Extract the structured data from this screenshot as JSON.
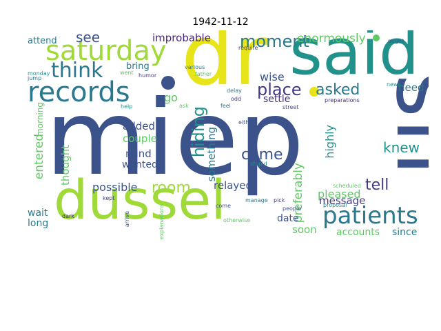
{
  "title": "1942-11-12",
  "words": [
    {
      "text": "miep",
      "color": "#3b528b"
    },
    {
      "text": "us",
      "color": "#3b528b"
    },
    {
      "text": "dr",
      "color": "#e7e419"
    },
    {
      "text": "said",
      "color": "#21918c"
    },
    {
      "text": "dussel",
      "color": "#a0da39"
    },
    {
      "text": "saturday",
      "color": "#a0da39"
    },
    {
      "text": "records",
      "color": "#2a788e"
    },
    {
      "text": "patients",
      "color": "#2a788e"
    },
    {
      "text": "think",
      "color": "#2a788e"
    },
    {
      "text": "see",
      "color": "#3b528b"
    },
    {
      "text": "moment",
      "color": "#2a788e"
    },
    {
      "text": "place",
      "color": "#443983"
    },
    {
      "text": "asked",
      "color": "#2a788e"
    },
    {
      "text": "enormously",
      "color": "#5ec962"
    },
    {
      "text": "improbable",
      "color": "#482475"
    },
    {
      "text": "bring",
      "color": "#2a788e"
    },
    {
      "text": "go",
      "color": "#5ec962"
    },
    {
      "text": "wise",
      "color": "#3b528b"
    },
    {
      "text": "settle",
      "color": "#472f7d"
    },
    {
      "text": "need",
      "color": "#2a788e"
    },
    {
      "text": "knew",
      "color": "#21918c"
    },
    {
      "text": "tell",
      "color": "#443983"
    },
    {
      "text": "came",
      "color": "#3b528b"
    },
    {
      "text": "hiding",
      "color": "#21918c"
    },
    {
      "text": "room",
      "color": "#a0da39"
    },
    {
      "text": "added",
      "color": "#3b528b"
    },
    {
      "text": "couple",
      "color": "#5ec962"
    },
    {
      "text": "mind",
      "color": "#3b528b"
    },
    {
      "text": "wanted",
      "color": "#3b528b"
    },
    {
      "text": "possible",
      "color": "#3b528b"
    },
    {
      "text": "something",
      "color": "#2a788e"
    },
    {
      "text": "relayed",
      "color": "#3b528b"
    },
    {
      "text": "preferably",
      "color": "#5ec962"
    },
    {
      "text": "highly",
      "color": "#21918c"
    },
    {
      "text": "pleased",
      "color": "#5ec962"
    },
    {
      "text": "message",
      "color": "#443983"
    },
    {
      "text": "date",
      "color": "#3b528b"
    },
    {
      "text": "soon",
      "color": "#5ec962"
    },
    {
      "text": "accounts",
      "color": "#5ec962"
    },
    {
      "text": "since",
      "color": "#2a788e"
    },
    {
      "text": "entered",
      "color": "#5ec962"
    },
    {
      "text": "thought",
      "color": "#5ec962"
    },
    {
      "text": "wait",
      "color": "#2a788e"
    },
    {
      "text": "long",
      "color": "#2a788e"
    },
    {
      "text": "attend",
      "color": "#2a788e"
    },
    {
      "text": "morning",
      "color": "#5ec962"
    },
    {
      "text": "monday",
      "color": "#21918c"
    },
    {
      "text": "jump",
      "color": "#2a788e"
    },
    {
      "text": "various",
      "color": "#2a788e"
    },
    {
      "text": "require",
      "color": "#443983"
    },
    {
      "text": "ought",
      "color": "#3b528b"
    },
    {
      "text": "went",
      "color": "#5ec962"
    },
    {
      "text": "humor",
      "color": "#443983"
    },
    {
      "text": "father",
      "color": "#5ec962"
    },
    {
      "text": "delay",
      "color": "#2a788e"
    },
    {
      "text": "odd",
      "color": "#443983"
    },
    {
      "text": "news",
      "color": "#21918c"
    },
    {
      "text": "preparations",
      "color": "#472f7d"
    },
    {
      "text": "feel",
      "color": "#2a788e"
    },
    {
      "text": "street",
      "color": "#3b528b"
    },
    {
      "text": "help",
      "color": "#21918c"
    },
    {
      "text": "ask",
      "color": "#5ec962"
    },
    {
      "text": "either",
      "color": "#3b528b"
    },
    {
      "text": "stupid",
      "color": "#21918c"
    },
    {
      "text": "kept",
      "color": "#443983"
    },
    {
      "text": "scheduled",
      "color": "#5ec962"
    },
    {
      "text": "manage",
      "color": "#2a788e"
    },
    {
      "text": "pick",
      "color": "#443983"
    },
    {
      "text": "people",
      "color": "#3b528b"
    },
    {
      "text": "proposal",
      "color": "#21918c"
    },
    {
      "text": "come",
      "color": "#3b528b"
    },
    {
      "text": "dark",
      "color": "#472f7d"
    },
    {
      "text": "arrive",
      "color": "#3b528b"
    },
    {
      "text": "explanations",
      "color": "#5ec962"
    },
    {
      "text": "otherwise",
      "color": "#5ec962"
    }
  ]
}
